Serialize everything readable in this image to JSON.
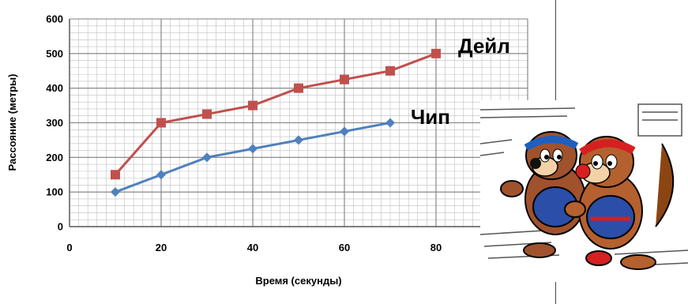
{
  "chart_data": {
    "type": "line",
    "title": "",
    "xlabel": "Время (секунды)",
    "ylabel": "Рассояние (метры)",
    "xlim": [
      0,
      100
    ],
    "ylim": [
      0,
      600
    ],
    "xticks": [
      0,
      20,
      40,
      60,
      80
    ],
    "yticks": [
      0,
      100,
      200,
      300,
      400,
      500,
      600
    ],
    "grid": true,
    "series": [
      {
        "name": "Дейл",
        "color": "#c0504d",
        "marker": "square",
        "x": [
          10,
          20,
          30,
          40,
          50,
          60,
          70,
          80
        ],
        "y": [
          150,
          300,
          325,
          350,
          400,
          425,
          450,
          500
        ]
      },
      {
        "name": "Чип",
        "color": "#4f81bd",
        "marker": "diamond",
        "x": [
          10,
          20,
          30,
          40,
          50,
          60,
          70
        ],
        "y": [
          100,
          150,
          200,
          225,
          250,
          275,
          300
        ]
      }
    ]
  },
  "illustration": {
    "icon": "chipmunks-running-icon"
  }
}
